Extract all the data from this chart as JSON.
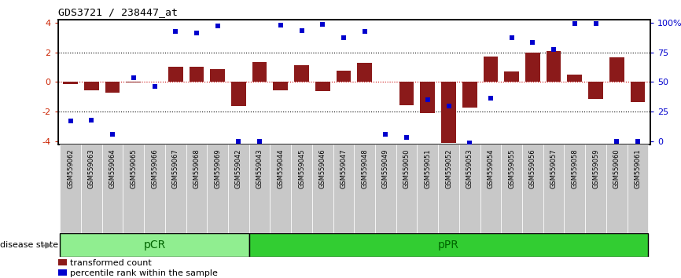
{
  "title": "GDS3721 / 238447_at",
  "samples": [
    "GSM559062",
    "GSM559063",
    "GSM559064",
    "GSM559065",
    "GSM559066",
    "GSM559067",
    "GSM559068",
    "GSM559069",
    "GSM559042",
    "GSM559043",
    "GSM559044",
    "GSM559045",
    "GSM559046",
    "GSM559047",
    "GSM559048",
    "GSM559049",
    "GSM559050",
    "GSM559051",
    "GSM559052",
    "GSM559053",
    "GSM559054",
    "GSM559055",
    "GSM559056",
    "GSM559057",
    "GSM559058",
    "GSM559059",
    "GSM559060",
    "GSM559061"
  ],
  "bar_values": [
    -0.15,
    -0.55,
    -0.7,
    -0.05,
    0.0,
    1.0,
    1.05,
    0.85,
    -1.6,
    1.35,
    -0.55,
    1.15,
    -0.6,
    0.75,
    1.3,
    0.0,
    -1.55,
    -2.1,
    -4.1,
    -1.7,
    1.7,
    0.7,
    1.95,
    2.1,
    0.5,
    -1.15,
    1.65,
    -1.35
  ],
  "blue_values": [
    -2.6,
    -2.55,
    -3.5,
    0.3,
    -0.3,
    3.4,
    3.3,
    3.75,
    -4.0,
    -4.0,
    3.8,
    3.45,
    3.85,
    3.0,
    3.4,
    -3.5,
    -3.7,
    -1.2,
    -1.6,
    -4.1,
    -1.1,
    3.0,
    2.65,
    2.2,
    3.9,
    3.9,
    -4.0,
    -4.0
  ],
  "pCR_count": 9,
  "pPR_count": 19,
  "bar_color": "#8B1A1A",
  "blue_color": "#0000CD",
  "ytick_color": "#CC2200",
  "ylim": [
    -4.2,
    4.2
  ],
  "yticks_left": [
    -4,
    -2,
    0,
    2,
    4
  ],
  "yticks_right": [
    0,
    25,
    50,
    75,
    100
  ],
  "dotted_color": "black",
  "red_line_color": "#CC0000",
  "pCR_color": "#90EE90",
  "pPR_color": "#32CD32",
  "label_color": "#006400",
  "ticklabel_bg": "#C8C8C8",
  "legend_bar": "transformed count",
  "legend_blue": "percentile rank within the sample",
  "background_color": "#ffffff",
  "disease_state_label": "disease state"
}
